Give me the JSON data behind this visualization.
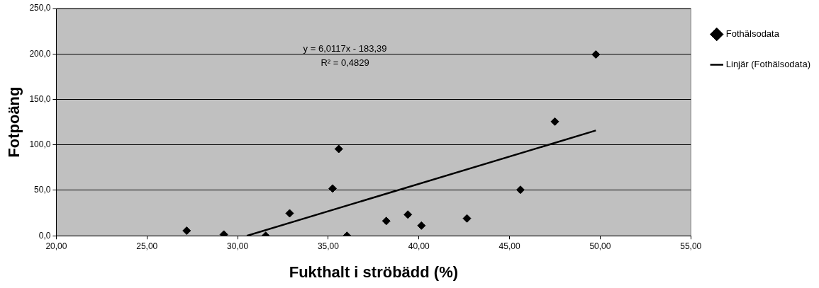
{
  "chart_data": {
    "type": "scatter",
    "xlabel": "Fukthalt i ströbädd (%)",
    "ylabel": "Fotpoäng",
    "series": [
      {
        "name": "Fothälsodata",
        "color": "#000000",
        "marker": "diamond",
        "x": [
          27.19,
          29.24,
          31.55,
          32.87,
          35.24,
          35.58,
          36.03,
          38.2,
          39.39,
          40.14,
          42.65,
          45.6,
          47.5,
          49.76
        ],
        "values": [
          5.6,
          1.4,
          0,
          24.7,
          52,
          95.5,
          0,
          16.3,
          23.3,
          11.2,
          19.1,
          50.6,
          125.6,
          199.4
        ]
      },
      {
        "name": "Linjär (Fothälsodata)",
        "type": "line",
        "color": "#000000",
        "marker": "none",
        "line_style": "solid",
        "x": [
          30.51,
          49.76
        ],
        "values": [
          0,
          115.8
        ]
      }
    ],
    "xlim": [
      20,
      55
    ],
    "xticks": [
      {
        "value": 20,
        "label": "20,00"
      },
      {
        "value": 25,
        "label": "25,00"
      },
      {
        "value": 30,
        "label": "30,00"
      },
      {
        "value": 35,
        "label": "35,00"
      },
      {
        "value": 40,
        "label": "40,00"
      },
      {
        "value": 45,
        "label": "45,00"
      },
      {
        "value": 50,
        "label": "50,00"
      },
      {
        "value": 55,
        "label": "55,00"
      }
    ],
    "ylim": [
      0,
      250
    ],
    "yticks": [
      {
        "value": 0,
        "label": "0,0"
      },
      {
        "value": 50,
        "label": "50,0"
      },
      {
        "value": 100,
        "label": "100,0"
      },
      {
        "value": 150,
        "label": "150,0"
      },
      {
        "value": 200,
        "label": "200,0"
      },
      {
        "value": 250,
        "label": "250,0"
      }
    ],
    "grid": "y",
    "legend": "right",
    "annotations": [
      "y = 6,0117x - 183,39",
      "R² = 0,4829"
    ]
  }
}
